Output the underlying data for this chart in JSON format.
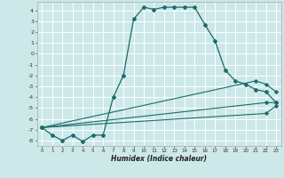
{
  "title": "",
  "xlabel": "Humidex (Indice chaleur)",
  "background_color": "#cde8e8",
  "grid_color": "#ffffff",
  "line_color": "#1a6b6b",
  "xlim": [
    -0.5,
    23.5
  ],
  "ylim": [
    -8.5,
    4.8
  ],
  "xticks": [
    0,
    1,
    2,
    3,
    4,
    5,
    6,
    7,
    8,
    9,
    10,
    11,
    12,
    13,
    14,
    15,
    16,
    17,
    18,
    19,
    20,
    21,
    22,
    23
  ],
  "yticks": [
    -8,
    -7,
    -6,
    -5,
    -4,
    -3,
    -2,
    -1,
    0,
    1,
    2,
    3,
    4
  ],
  "line1_x": [
    0,
    1,
    2,
    3,
    4,
    5,
    6,
    7,
    8,
    9,
    10,
    11,
    12,
    13,
    14,
    15,
    16,
    17,
    18,
    19,
    20,
    21,
    22,
    23
  ],
  "line1_y": [
    -6.8,
    -7.5,
    -8.0,
    -7.5,
    -8.1,
    -7.5,
    -7.5,
    -4.0,
    -2.0,
    3.2,
    4.3,
    4.1,
    4.3,
    4.3,
    4.3,
    4.3,
    2.7,
    1.2,
    -1.5,
    -2.5,
    -2.8,
    -3.3,
    -3.5,
    -4.5
  ],
  "line2_x": [
    0,
    21,
    22,
    23
  ],
  "line2_y": [
    -6.8,
    -2.5,
    -2.8,
    -3.5
  ],
  "line3_x": [
    0,
    22,
    23
  ],
  "line3_y": [
    -6.8,
    -4.5,
    -4.5
  ],
  "line4_x": [
    0,
    22,
    23
  ],
  "line4_y": [
    -6.8,
    -5.5,
    -4.8
  ]
}
